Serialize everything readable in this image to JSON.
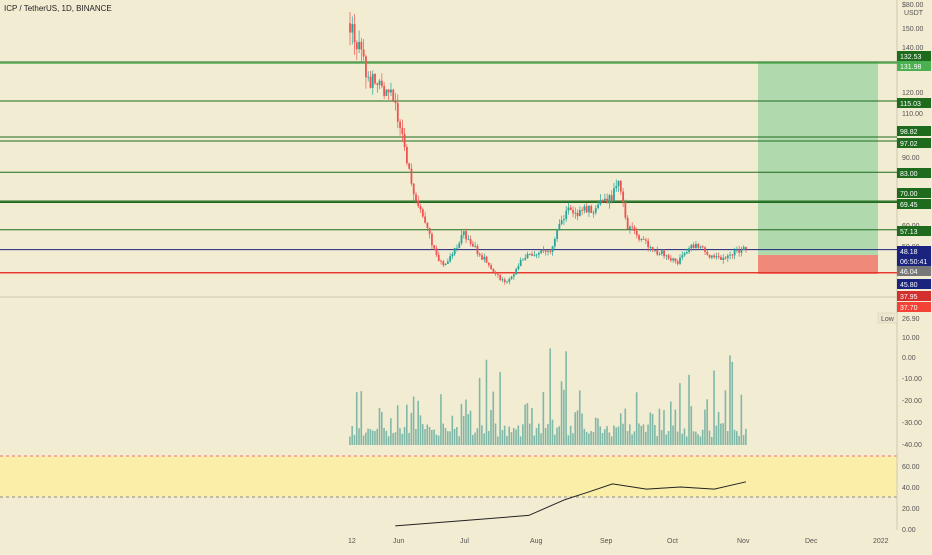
{
  "header": {
    "symbol_line": "ICP / TetherUS, 1D, BINANCE"
  },
  "price_axis": {
    "top_label": "$80.00",
    "currency": "USDT",
    "ticks": [
      "150.00",
      "140.00",
      "120.00",
      "110.00",
      "90.00",
      "60.00",
      "50.00",
      "26.90"
    ],
    "low_label": "Low"
  },
  "levels": [
    {
      "label": "132.53",
      "value": 132.53,
      "color": "#1e6b1e"
    },
    {
      "label": "131.98",
      "value": 131.98,
      "color": "#4caf50"
    },
    {
      "label": "115.03",
      "value": 115.03,
      "color": "#1e6b1e"
    },
    {
      "label": "98.82",
      "value": 98.82,
      "color": "#1e6b1e"
    },
    {
      "label": "97.02",
      "value": 97.02,
      "color": "#1e6b1e"
    },
    {
      "label": "83.00",
      "value": 83.0,
      "color": "#1e6b1e"
    },
    {
      "label": "70.00",
      "value": 70.0,
      "color": "#1e6b1e"
    },
    {
      "label": "69.45",
      "value": 69.45,
      "color": "#1e6b1e"
    },
    {
      "label": "57.13",
      "value": 57.13,
      "color": "#1e6b1e"
    },
    {
      "label": "48.18",
      "value": 48.18,
      "color": "#1a237e"
    },
    {
      "label": "06:50:41",
      "value": 46.9,
      "color": "#1a237e"
    },
    {
      "label": "46.04",
      "value": 46.04,
      "color": "#777777"
    },
    {
      "label": "45.80",
      "value": 45.8,
      "color": "#1a237e"
    },
    {
      "label": "37.95",
      "value": 37.95,
      "color": "#d32f2f"
    },
    {
      "label": "37.70",
      "value": 37.7,
      "color": "#f44336"
    }
  ],
  "volume_axis": {
    "ticks": [
      "10.00",
      "0.00",
      "-10.00",
      "-20.00",
      "-30.00",
      "-40.00"
    ]
  },
  "indicator_axis": {
    "ticks": [
      "60.00",
      "40.00",
      "20.00",
      "0.00"
    ]
  },
  "time_axis": {
    "labels": [
      "12",
      "Jun",
      "Jul",
      "Aug",
      "Sep",
      "Oct",
      "Nov",
      "Dec",
      "2022"
    ]
  },
  "colors": {
    "up": "#26a69a",
    "down": "#ef5350",
    "volume": "#80b8a8",
    "target_zone": "#a5d6a7",
    "stop_zone": "#ef8a7a",
    "band": "#fbeea9"
  },
  "chart_data": {
    "type": "candlestick",
    "x_range": [
      "2021-05-12",
      "2021-11-03"
    ],
    "price_key_points": [
      {
        "date": "2021-05-12",
        "value": 150
      },
      {
        "date": "2021-05-20",
        "value": 125
      },
      {
        "date": "2021-06-01",
        "value": 115
      },
      {
        "date": "2021-06-10",
        "value": 70
      },
      {
        "date": "2021-06-22",
        "value": 40
      },
      {
        "date": "2021-07-01",
        "value": 55
      },
      {
        "date": "2021-07-20",
        "value": 32
      },
      {
        "date": "2021-07-27",
        "value": 45
      },
      {
        "date": "2021-08-09",
        "value": 48
      },
      {
        "date": "2021-08-15",
        "value": 65
      },
      {
        "date": "2021-08-26",
        "value": 66
      },
      {
        "date": "2021-09-05",
        "value": 72
      },
      {
        "date": "2021-09-07",
        "value": 80
      },
      {
        "date": "2021-09-12",
        "value": 58
      },
      {
        "date": "2021-09-23",
        "value": 48
      },
      {
        "date": "2021-10-04",
        "value": 43
      },
      {
        "date": "2021-10-11",
        "value": 50
      },
      {
        "date": "2021-10-21",
        "value": 44
      },
      {
        "date": "2021-11-03",
        "value": 48.18
      }
    ],
    "indicator_key_points": [
      {
        "date": "2021-06-01",
        "value": 3
      },
      {
        "date": "2021-07-01",
        "value": 8
      },
      {
        "date": "2021-07-30",
        "value": 13
      },
      {
        "date": "2021-08-15",
        "value": 28
      },
      {
        "date": "2021-08-25",
        "value": 35
      },
      {
        "date": "2021-09-05",
        "value": 43
      },
      {
        "date": "2021-09-20",
        "value": 38
      },
      {
        "date": "2021-10-05",
        "value": 40
      },
      {
        "date": "2021-10-20",
        "value": 38
      },
      {
        "date": "2021-11-03",
        "value": 45
      }
    ]
  }
}
